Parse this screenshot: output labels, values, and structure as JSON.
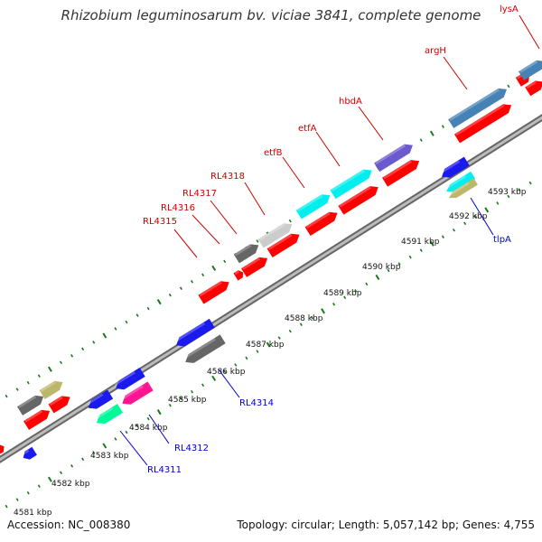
{
  "title": "Rhizobium leguminosarum bv. viciae 3841, complete genome",
  "footer": {
    "accession": "Accession: NC_008380",
    "summary": "Topology: circular; Length: 5,057,142 bp; Genes: 4,755"
  },
  "scale_labels": [
    "4581 kbp",
    "4582 kbp",
    "4583 kbp",
    "4584 kbp",
    "4585 kbp",
    "4586 kbp",
    "4587 kbp",
    "4588 kbp",
    "4589 kbp",
    "4590 kbp",
    "4591 kbp",
    "4592 kbp",
    "4593 kbp"
  ],
  "forward_gene_labels": [
    "RL4315",
    "RL4316",
    "RL4317",
    "RL4318",
    "etfB",
    "etfA",
    "hbdA",
    "argH",
    "lysA"
  ],
  "reverse_gene_labels": [
    "RL4311",
    "RL4312",
    "RL4314",
    "tlpA"
  ],
  "colors": {
    "backbone": "#999999",
    "tick": "#1a7a1a",
    "forward_label": "#cc0000",
    "reverse_label": "#0000cc",
    "cds_red": "#ff0000",
    "cds_blue": "#1a1aee",
    "cds_gray": "#666666",
    "cds_lightgray": "#cccccc",
    "cds_cyan": "#00eeee",
    "cds_purple": "#6a5acd",
    "cds_steelblue": "#4682b4",
    "cds_olive": "#bdb76b",
    "cds_springgreen": "#00fa9a",
    "cds_magenta": "#ff1493"
  }
}
